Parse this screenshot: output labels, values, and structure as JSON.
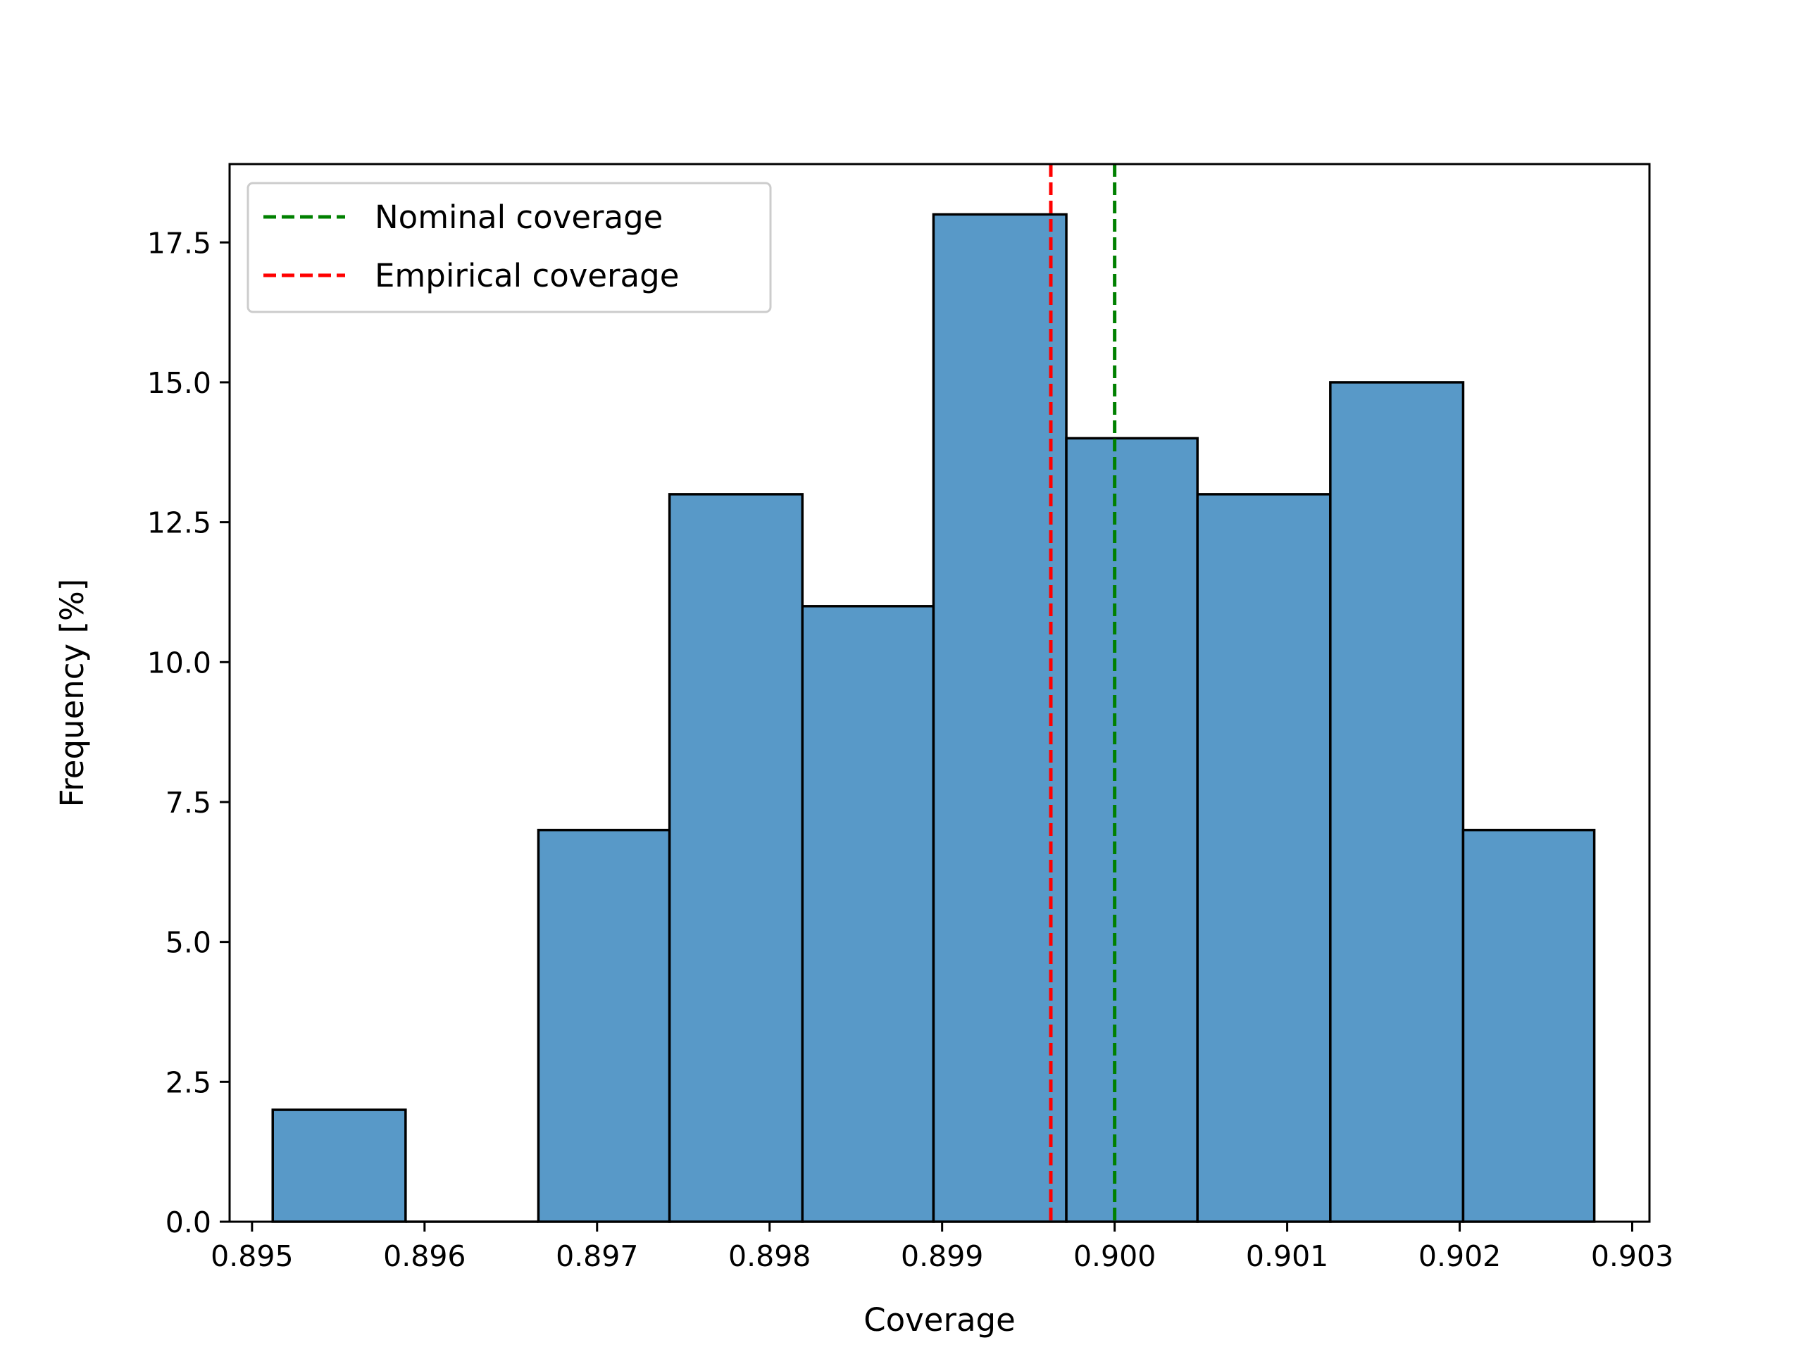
{
  "chart_data": {
    "type": "bar",
    "title": "",
    "xlabel": "Coverage",
    "ylabel": "Frequency [%]",
    "xlim": [
      0.89487,
      0.9031
    ],
    "ylim": [
      0,
      18.9
    ],
    "x_ticks": [
      0.895,
      0.896,
      0.897,
      0.898,
      0.899,
      0.9,
      0.901,
      0.902,
      0.903
    ],
    "x_tick_labels": [
      "0.895",
      "0.896",
      "0.897",
      "0.898",
      "0.899",
      "0.900",
      "0.901",
      "0.902",
      "0.903"
    ],
    "y_ticks": [
      0,
      2.5,
      5,
      7.5,
      10,
      12.5,
      15,
      17.5
    ],
    "y_tick_labels": [
      "0.0",
      "2.5",
      "5.0",
      "7.5",
      "10.0",
      "12.5",
      "15.0",
      "17.5"
    ],
    "bins": [
      {
        "x0": 0.89512,
        "x1": 0.89589,
        "value": 2
      },
      {
        "x0": 0.89589,
        "x1": 0.89666,
        "value": 0
      },
      {
        "x0": 0.89666,
        "x1": 0.89742,
        "value": 7
      },
      {
        "x0": 0.89742,
        "x1": 0.89819,
        "value": 13
      },
      {
        "x0": 0.89819,
        "x1": 0.89895,
        "value": 11
      },
      {
        "x0": 0.89895,
        "x1": 0.89972,
        "value": 18
      },
      {
        "x0": 0.89972,
        "x1": 0.90048,
        "value": 14
      },
      {
        "x0": 0.90048,
        "x1": 0.90125,
        "value": 13
      },
      {
        "x0": 0.90125,
        "x1": 0.90202,
        "value": 15
      },
      {
        "x0": 0.90202,
        "x1": 0.90278,
        "value": 7
      }
    ],
    "vlines": [
      {
        "name": "Nominal coverage",
        "x": 0.9,
        "color": "#008000",
        "style": "dashed"
      },
      {
        "name": "Empirical coverage",
        "x": 0.89963,
        "color": "#ff0000",
        "style": "dashed"
      }
    ],
    "bar_color": "#5899c8",
    "edge_color": "#000000",
    "grid": false,
    "legend_position": "top-left"
  }
}
